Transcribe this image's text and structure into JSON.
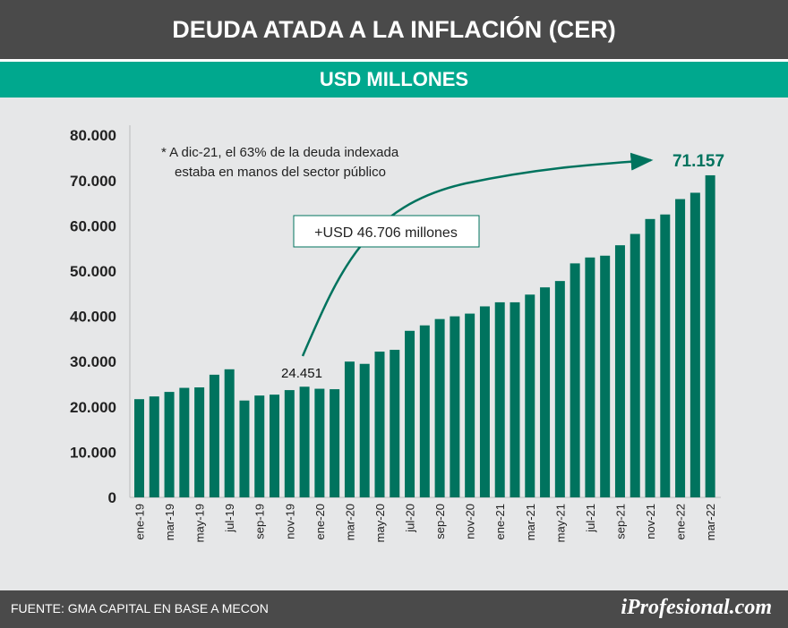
{
  "header": {
    "title": "DEUDA ATADA A LA INFLACIÓN (CER)",
    "subtitle": "USD MILLONES"
  },
  "footer": {
    "source": "FUENTE: GMA CAPITAL EN BASE A MECON",
    "logo": "iProfesional.com"
  },
  "colors": {
    "bar": "#00735e",
    "header": "#4a4a4a",
    "band": "#00a88e",
    "background": "#e6e7e8"
  },
  "chart_data": {
    "type": "bar",
    "title": "DEUDA ATADA A LA INFLACIÓN (CER)",
    "subtitle": "USD MILLONES",
    "ylim": [
      0,
      80000
    ],
    "yticks": [
      "0",
      "10.000",
      "20.000",
      "30.000",
      "40.000",
      "50.000",
      "60.000",
      "70.000",
      "80.000"
    ],
    "xtick_labels": [
      "ene-19",
      "mar-19",
      "may-19",
      "jul-19",
      "sep-19",
      "nov-19",
      "ene-20",
      "mar-20",
      "may-20",
      "jul-20",
      "sep-20",
      "nov-20",
      "ene-21",
      "mar-21",
      "may-21",
      "jul-21",
      "sep-21",
      "nov-21",
      "ene-22",
      "mar-22"
    ],
    "categories": [
      "ene-19",
      "feb-19",
      "mar-19",
      "abr-19",
      "may-19",
      "jun-19",
      "jul-19",
      "ago-19",
      "sep-19",
      "oct-19",
      "nov-19",
      "dic-19",
      "ene-20",
      "feb-20",
      "mar-20",
      "abr-20",
      "may-20",
      "jun-20",
      "jul-20",
      "ago-20",
      "sep-20",
      "oct-20",
      "nov-20",
      "dic-20",
      "ene-21",
      "feb-21",
      "mar-21",
      "abr-21",
      "may-21",
      "jun-21",
      "jul-21",
      "ago-21",
      "sep-21",
      "oct-21",
      "nov-21",
      "dic-21",
      "ene-22",
      "feb-22",
      "mar-22"
    ],
    "values": [
      21700,
      22300,
      23300,
      24200,
      24300,
      27100,
      28300,
      21400,
      22500,
      22700,
      23700,
      24451,
      24000,
      23900,
      30000,
      29500,
      32200,
      32600,
      36800,
      38000,
      39400,
      40000,
      40600,
      42200,
      43100,
      43100,
      44800,
      46400,
      47800,
      51700,
      53000,
      53400,
      55700,
      58200,
      61500,
      62500,
      65900,
      67300,
      71157
    ],
    "data_labels": {
      "start": "24.451",
      "end": "71.157"
    },
    "annotations": {
      "increase": "+USD 46.706 millones",
      "note_line1": "* A dic-21, el 63% de la deuda indexada",
      "note_line2": "estaba en manos del sector público"
    },
    "grid": false
  }
}
